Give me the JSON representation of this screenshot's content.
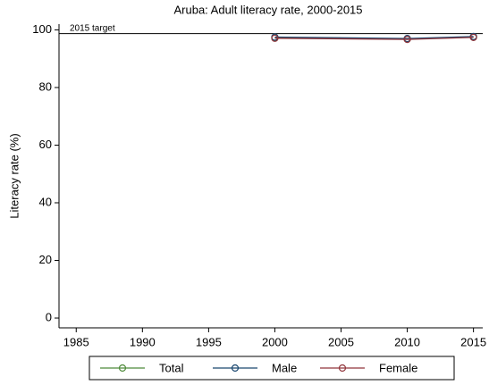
{
  "chart_data": {
    "type": "line",
    "title": "Aruba: Adult literacy rate, 2000-2015",
    "y_label": "Literacy rate (%)",
    "x": [
      2000,
      2010,
      2015
    ],
    "series": [
      {
        "name": "Total",
        "color": "#4e8a3a",
        "values": [
          97.3,
          96.8,
          97.5
        ]
      },
      {
        "name": "Male",
        "color": "#1a476f",
        "values": [
          97.5,
          97.0,
          97.7
        ]
      },
      {
        "name": "Female",
        "color": "#90353b",
        "values": [
          97.1,
          96.7,
          97.4
        ]
      }
    ],
    "target_line": {
      "value": 98.7,
      "label": "2015 target"
    },
    "xlim": [
      1983.7,
      2015.7
    ],
    "xticks": [
      1985,
      1990,
      1995,
      2000,
      2005,
      2010,
      2015
    ],
    "ylim": [
      -3.4,
      102
    ],
    "yticks": [
      0,
      20,
      40,
      60,
      80,
      100
    ],
    "legend": "bottom"
  }
}
